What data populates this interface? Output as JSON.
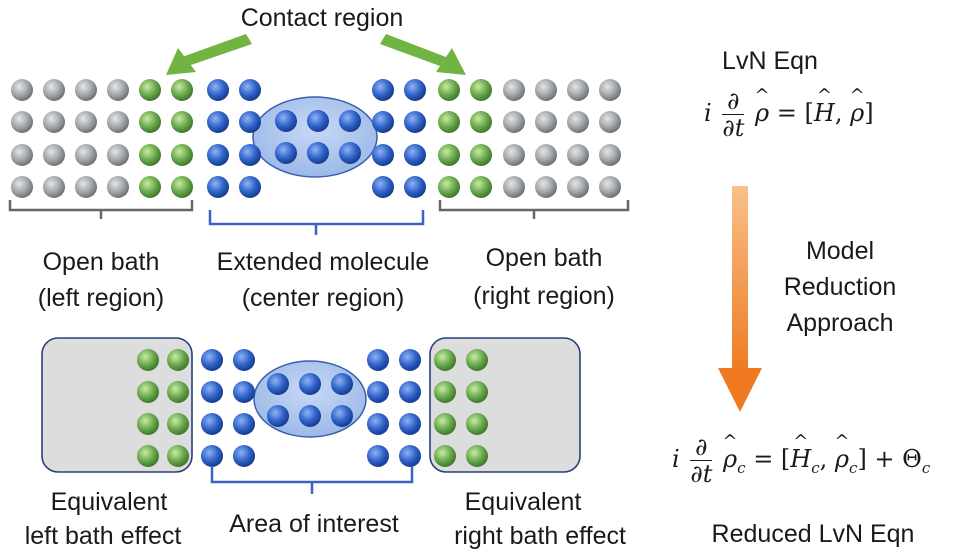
{
  "labels": {
    "contact_region": "Contact region",
    "lvn_eqn_title": "LvN Eqn",
    "open_bath_left_1": "Open bath",
    "open_bath_left_2": "(left region)",
    "extended_molecule_1": "Extended molecule",
    "extended_molecule_2": "(center region)",
    "open_bath_right_1": "Open bath",
    "open_bath_right_2": "(right region)",
    "model_reduction_1": "Model",
    "model_reduction_2": "Reduction",
    "model_reduction_3": "Approach",
    "equiv_left_1": "Equivalent",
    "equiv_left_2": "left bath effect",
    "area_of_interest": "Area of interest",
    "equiv_right_1": "Equivalent",
    "equiv_right_2": "right bath effect",
    "reduced_lvn": "Reduced LvN Eqn"
  },
  "equations": {
    "lvn": {
      "i": "i",
      "d": "∂",
      "dt": "∂t",
      "rho": "ρ",
      "rhs": "= [",
      "H": "H",
      "comma": ",",
      "rho2": "ρ",
      "close": "]"
    },
    "reduced": {
      "i": "i",
      "d": "∂",
      "dt": "∂t",
      "rho": "ρ",
      "sub_c": "c",
      "rhs": "= [",
      "H": "H",
      "comma": ",",
      "rho2": "ρ",
      "close": "] + Θ",
      "theta_sub": "c"
    }
  },
  "colors": {
    "gray_atom": "#9a9ea3",
    "green_atom": "#6aa84f",
    "blue_atom": "#2f62c9",
    "ellipse_fill": "#a9c4ee",
    "ellipse_stroke": "#3a5fae",
    "bath_box_fill": "#dcdcdc",
    "bath_box_stroke": "#2a3f7a",
    "gray_bracket": "#666666",
    "blue_bracket": "#3b63c4",
    "arrow_green": "#72b442",
    "arrow_orange": "#ef8a2e"
  }
}
